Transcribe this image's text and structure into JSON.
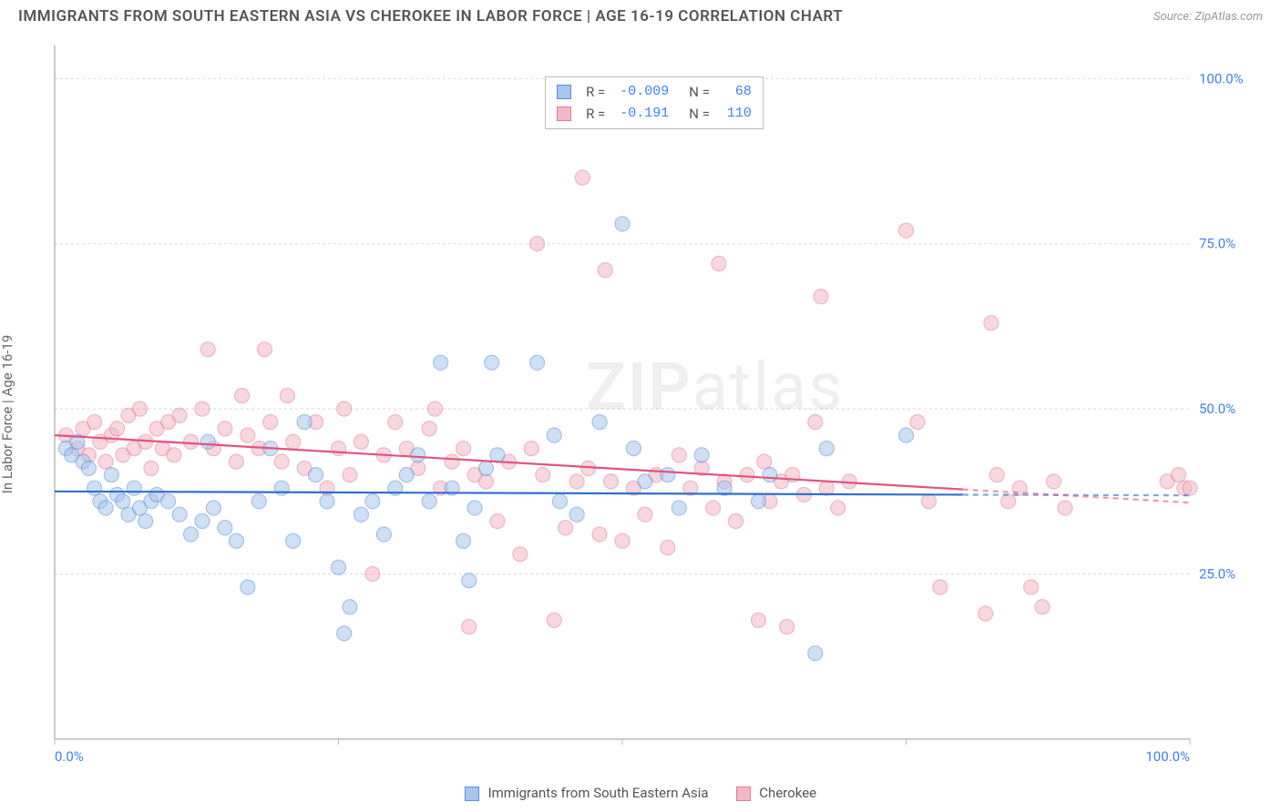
{
  "title": "IMMIGRANTS FROM SOUTH EASTERN ASIA VS CHEROKEE IN LABOR FORCE | AGE 16-19 CORRELATION CHART",
  "source": "Source: ZipAtlas.com",
  "y_axis_label": "In Labor Force | Age 16-19",
  "watermark": {
    "bold": "ZIP",
    "rest": "atlas"
  },
  "chart": {
    "type": "scatter",
    "background_color": "#ffffff",
    "grid_color": "#d8d8d8",
    "axis_color": "#bbbbbb",
    "tick_label_color": "#3b82f6",
    "xlim": [
      0,
      100
    ],
    "ylim": [
      0,
      105
    ],
    "x_ticks": [
      0,
      25,
      50,
      75,
      100
    ],
    "y_ticks": [
      25,
      50,
      75,
      100
    ],
    "x_tick_labels": [
      "0.0%",
      "",
      "",
      "",
      "100.0%"
    ],
    "y_tick_labels": [
      "25.0%",
      "50.0%",
      "75.0%",
      "100.0%"
    ],
    "marker_radius": 8,
    "marker_opacity": 0.55,
    "series": [
      {
        "name": "Immigrants from South Eastern Asia",
        "fill": "#a8c5ec",
        "stroke": "#5b8fd6",
        "line_color": "#2f6fd0",
        "stats": {
          "R": "-0.009",
          "N": "68"
        },
        "trend": {
          "x1": 0,
          "y1": 37.5,
          "x2": 80,
          "y2": 37.0,
          "dash_after": 80,
          "x3": 100,
          "y3": 36.9
        },
        "points": [
          [
            1,
            44
          ],
          [
            1.5,
            43
          ],
          [
            2,
            45
          ],
          [
            2.5,
            42
          ],
          [
            3,
            41
          ],
          [
            3.5,
            38
          ],
          [
            4,
            36
          ],
          [
            4.5,
            35
          ],
          [
            5,
            40
          ],
          [
            5.5,
            37
          ],
          [
            6,
            36
          ],
          [
            6.5,
            34
          ],
          [
            7,
            38
          ],
          [
            7.5,
            35
          ],
          [
            8,
            33
          ],
          [
            8.5,
            36
          ],
          [
            9,
            37
          ],
          [
            10,
            36
          ],
          [
            11,
            34
          ],
          [
            12,
            31
          ],
          [
            13,
            33
          ],
          [
            13.5,
            45
          ],
          [
            14,
            35
          ],
          [
            15,
            32
          ],
          [
            16,
            30
          ],
          [
            17,
            23
          ],
          [
            18,
            36
          ],
          [
            19,
            44
          ],
          [
            20,
            38
          ],
          [
            21,
            30
          ],
          [
            22,
            48
          ],
          [
            23,
            40
          ],
          [
            24,
            36
          ],
          [
            25,
            26
          ],
          [
            25.5,
            16
          ],
          [
            26,
            20
          ],
          [
            27,
            34
          ],
          [
            28,
            36
          ],
          [
            29,
            31
          ],
          [
            30,
            38
          ],
          [
            31,
            40
          ],
          [
            32,
            43
          ],
          [
            33,
            36
          ],
          [
            34,
            57
          ],
          [
            35,
            38
          ],
          [
            36,
            30
          ],
          [
            36.5,
            24
          ],
          [
            37,
            35
          ],
          [
            38,
            41
          ],
          [
            38.5,
            57
          ],
          [
            39,
            43
          ],
          [
            42.5,
            57
          ],
          [
            44,
            46
          ],
          [
            44.5,
            36
          ],
          [
            46,
            34
          ],
          [
            48,
            48
          ],
          [
            50,
            78
          ],
          [
            51,
            44
          ],
          [
            52,
            39
          ],
          [
            54,
            40
          ],
          [
            55,
            35
          ],
          [
            57,
            43
          ],
          [
            59,
            38
          ],
          [
            62,
            36
          ],
          [
            63,
            40
          ],
          [
            67,
            13
          ],
          [
            68,
            44
          ],
          [
            75,
            46
          ]
        ]
      },
      {
        "name": "Cherokee",
        "fill": "#f4b7c6",
        "stroke": "#e07c9c",
        "line_color": "#e3527f",
        "stats": {
          "R": "-0.191",
          "N": "110"
        },
        "trend": {
          "x1": 0,
          "y1": 46,
          "x2": 80,
          "y2": 37.8,
          "dash_after": 80,
          "x3": 100,
          "y3": 35.8
        },
        "points": [
          [
            1,
            46
          ],
          [
            2,
            44
          ],
          [
            2.5,
            47
          ],
          [
            3,
            43
          ],
          [
            3.5,
            48
          ],
          [
            4,
            45
          ],
          [
            4.5,
            42
          ],
          [
            5,
            46
          ],
          [
            5.5,
            47
          ],
          [
            6,
            43
          ],
          [
            6.5,
            49
          ],
          [
            7,
            44
          ],
          [
            7.5,
            50
          ],
          [
            8,
            45
          ],
          [
            8.5,
            41
          ],
          [
            9,
            47
          ],
          [
            9.5,
            44
          ],
          [
            10,
            48
          ],
          [
            10.5,
            43
          ],
          [
            11,
            49
          ],
          [
            12,
            45
          ],
          [
            13,
            50
          ],
          [
            13.5,
            59
          ],
          [
            14,
            44
          ],
          [
            15,
            47
          ],
          [
            16,
            42
          ],
          [
            16.5,
            52
          ],
          [
            17,
            46
          ],
          [
            18,
            44
          ],
          [
            18.5,
            59
          ],
          [
            19,
            48
          ],
          [
            20,
            42
          ],
          [
            20.5,
            52
          ],
          [
            21,
            45
          ],
          [
            22,
            41
          ],
          [
            23,
            48
          ],
          [
            24,
            38
          ],
          [
            25,
            44
          ],
          [
            25.5,
            50
          ],
          [
            26,
            40
          ],
          [
            27,
            45
          ],
          [
            28,
            25
          ],
          [
            29,
            43
          ],
          [
            30,
            48
          ],
          [
            31,
            44
          ],
          [
            32,
            41
          ],
          [
            33,
            47
          ],
          [
            33.5,
            50
          ],
          [
            34,
            38
          ],
          [
            35,
            42
          ],
          [
            36,
            44
          ],
          [
            36.5,
            17
          ],
          [
            37,
            40
          ],
          [
            38,
            39
          ],
          [
            39,
            33
          ],
          [
            40,
            42
          ],
          [
            41,
            28
          ],
          [
            42,
            44
          ],
          [
            42.5,
            75
          ],
          [
            43,
            40
          ],
          [
            44,
            18
          ],
          [
            45,
            32
          ],
          [
            46,
            39
          ],
          [
            46.5,
            85
          ],
          [
            47,
            41
          ],
          [
            48,
            31
          ],
          [
            48.5,
            71
          ],
          [
            49,
            39
          ],
          [
            50,
            30
          ],
          [
            51,
            38
          ],
          [
            52,
            34
          ],
          [
            53,
            40
          ],
          [
            54,
            29
          ],
          [
            55,
            43
          ],
          [
            56,
            38
          ],
          [
            57,
            41
          ],
          [
            58,
            35
          ],
          [
            58.5,
            72
          ],
          [
            59,
            39
          ],
          [
            60,
            33
          ],
          [
            61,
            40
          ],
          [
            62,
            18
          ],
          [
            62.5,
            42
          ],
          [
            63,
            36
          ],
          [
            64,
            39
          ],
          [
            64.5,
            17
          ],
          [
            65,
            40
          ],
          [
            66,
            37
          ],
          [
            67,
            48
          ],
          [
            67.5,
            67
          ],
          [
            68,
            38
          ],
          [
            69,
            35
          ],
          [
            70,
            39
          ],
          [
            75,
            77
          ],
          [
            76,
            48
          ],
          [
            77,
            36
          ],
          [
            78,
            23
          ],
          [
            82,
            19
          ],
          [
            82.5,
            63
          ],
          [
            83,
            40
          ],
          [
            84,
            36
          ],
          [
            85,
            38
          ],
          [
            86,
            23
          ],
          [
            87,
            20
          ],
          [
            88,
            39
          ],
          [
            89,
            35
          ],
          [
            98,
            39
          ],
          [
            99,
            40
          ],
          [
            99.5,
            38
          ],
          [
            100,
            38
          ]
        ]
      }
    ]
  },
  "bottom_legend": [
    {
      "label": "Immigrants from South Eastern Asia",
      "fill": "#a8c5ec",
      "stroke": "#5b8fd6"
    },
    {
      "label": "Cherokee",
      "fill": "#f4b7c6",
      "stroke": "#e07c9c"
    }
  ]
}
